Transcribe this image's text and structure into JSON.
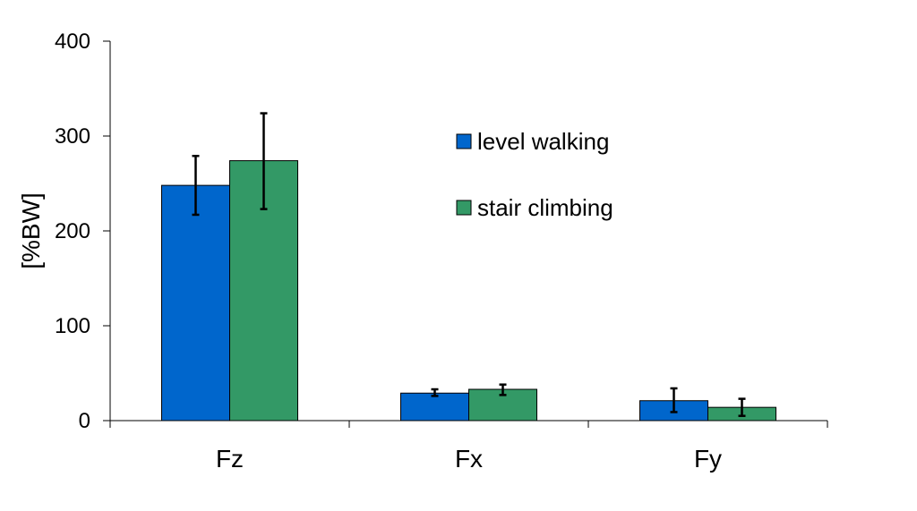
{
  "chart_data": {
    "type": "bar",
    "title": "",
    "xlabel": "",
    "ylabel": "[%BW]",
    "ylim": [
      0,
      400
    ],
    "yticks": [
      0,
      100,
      200,
      300,
      400
    ],
    "grid": false,
    "legend_position": "upper-center",
    "categories": [
      "Fz",
      "Fx",
      "Fy"
    ],
    "series": [
      {
        "name": "level walking",
        "color": "#0066cc",
        "values": [
          248,
          29,
          21
        ],
        "error_low": [
          217,
          26,
          9
        ],
        "error_high": [
          279,
          33,
          34
        ]
      },
      {
        "name": "stair climbing",
        "color": "#339966",
        "values": [
          274,
          33,
          14
        ],
        "error_low": [
          223,
          27,
          5
        ],
        "error_high": [
          324,
          38,
          23
        ]
      }
    ]
  }
}
